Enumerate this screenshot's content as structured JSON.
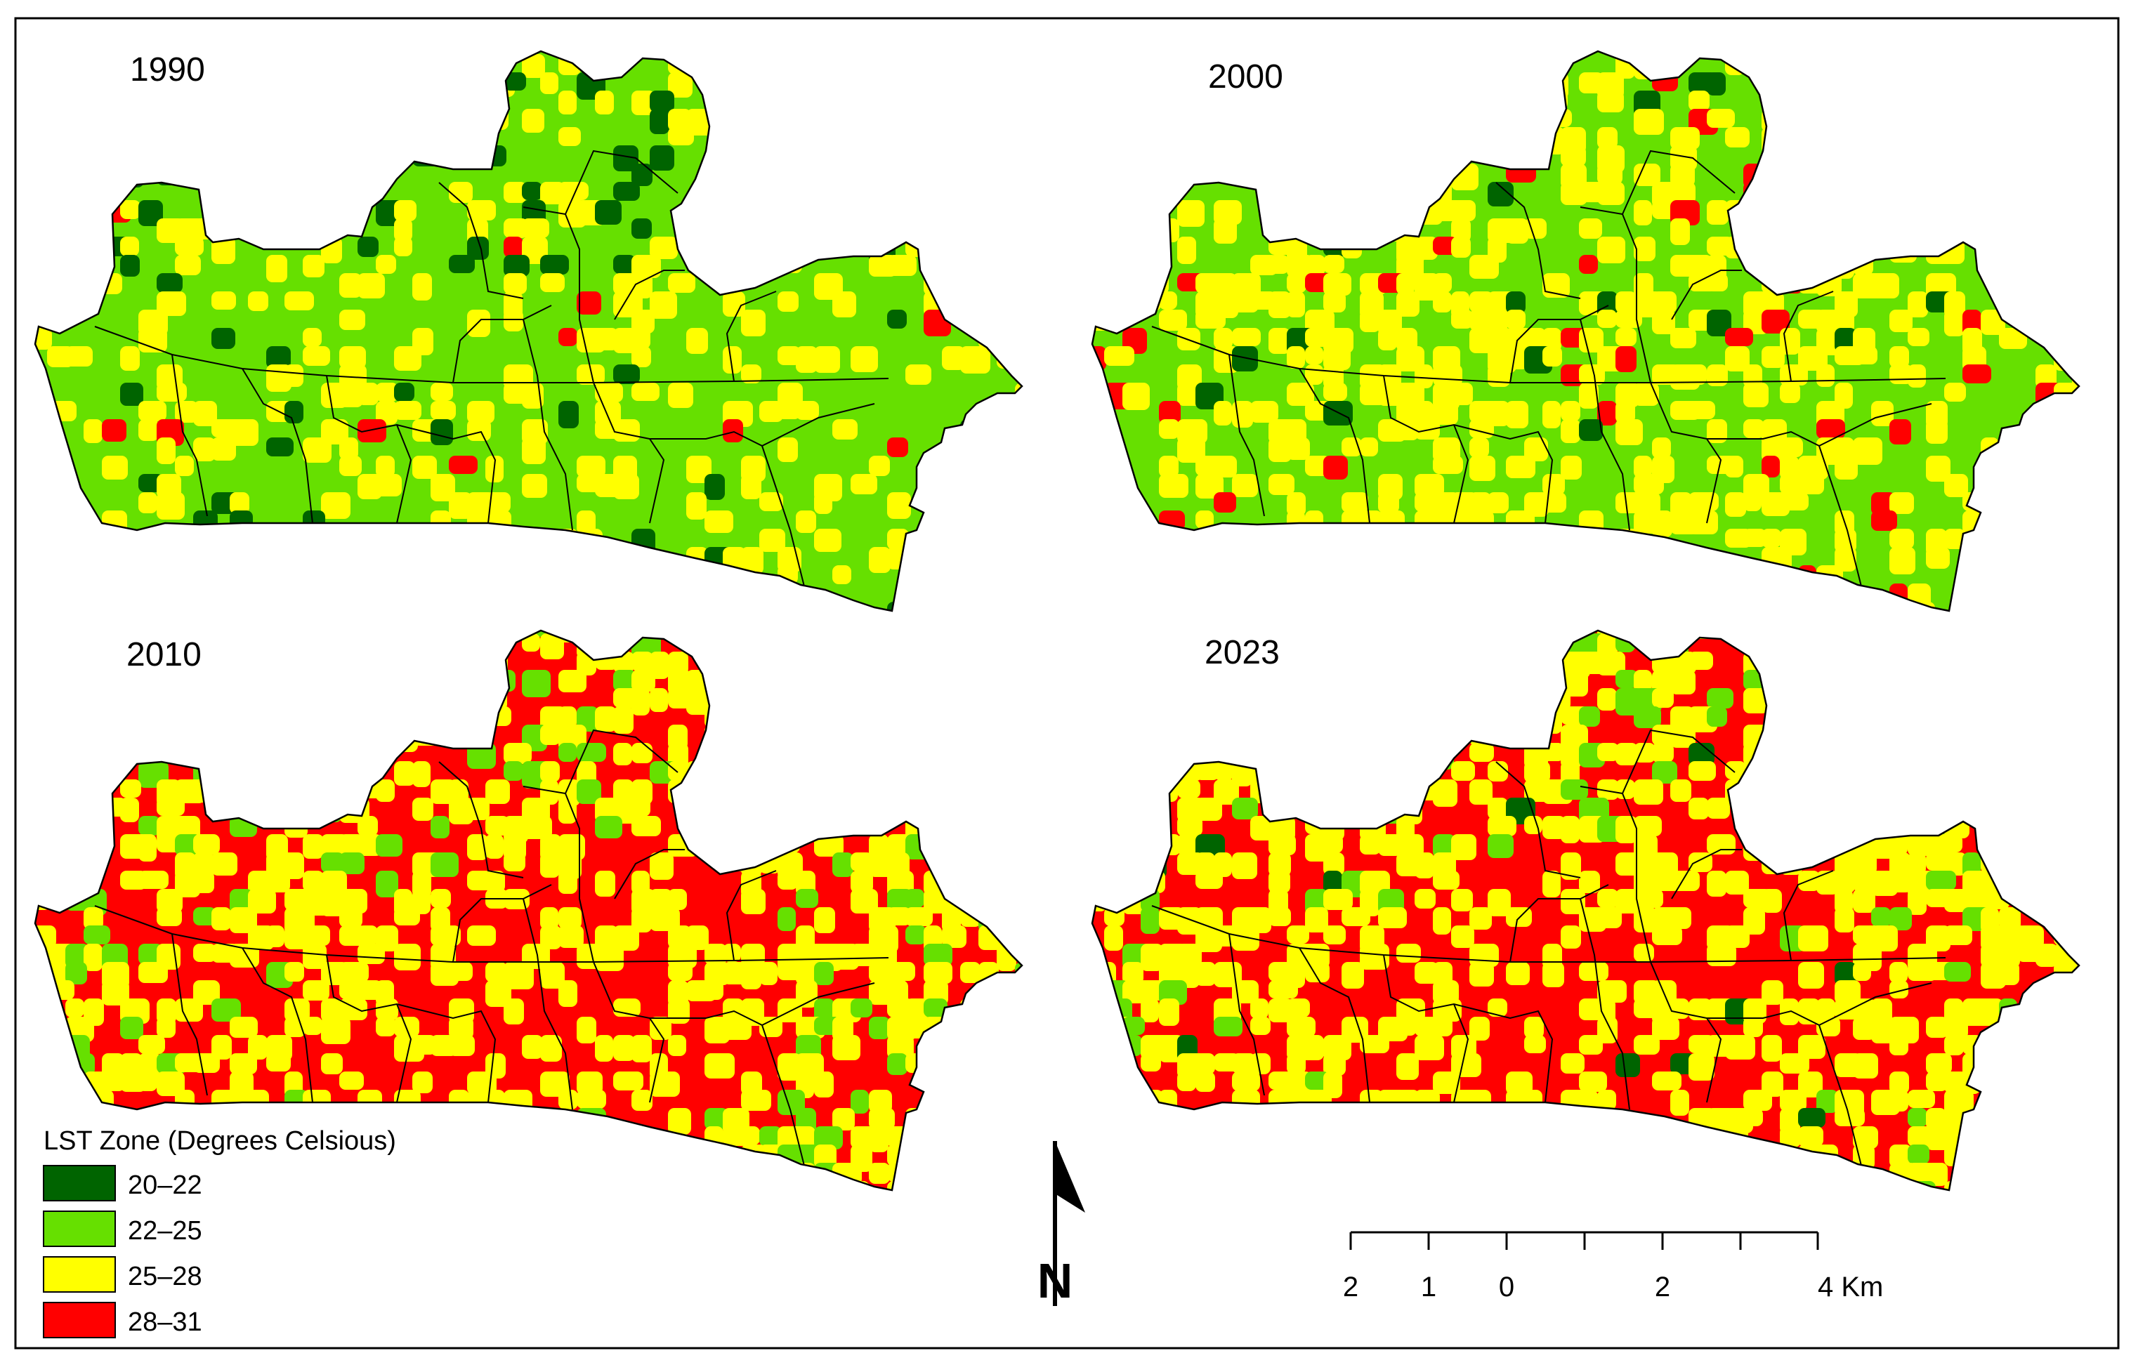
{
  "panels": [
    {
      "year": "1990",
      "palette": [
        "#006400",
        "#66e000",
        "#ffff00",
        "#ff0000"
      ],
      "mix": [
        0.05,
        0.75,
        0.19,
        0.01
      ]
    },
    {
      "year": "2000",
      "palette": [
        "#006400",
        "#66e000",
        "#ffff00",
        "#ff0000"
      ],
      "mix": [
        0.02,
        0.58,
        0.37,
        0.03
      ]
    },
    {
      "year": "2010",
      "palette": [
        "#006400",
        "#66e000",
        "#ffff00",
        "#ff0000"
      ],
      "mix": [
        0.0,
        0.13,
        0.39,
        0.48
      ]
    },
    {
      "year": "2023",
      "palette": [
        "#006400",
        "#66e000",
        "#ffff00",
        "#ff0000"
      ],
      "mix": [
        0.01,
        0.1,
        0.42,
        0.47
      ]
    }
  ],
  "legend": {
    "title": "LST Zone (Degrees Celsious)",
    "items": [
      {
        "label": "20–22",
        "color": "#006400"
      },
      {
        "label": "22–25",
        "color": "#66e000"
      },
      {
        "label": "25–28",
        "color": "#ffff00"
      },
      {
        "label": "28–31",
        "color": "#ff0000"
      }
    ]
  },
  "north_arrow": {
    "label": "N"
  },
  "scale_bar": {
    "labels": [
      "2",
      "1",
      "0",
      "2",
      "4 Km"
    ]
  }
}
